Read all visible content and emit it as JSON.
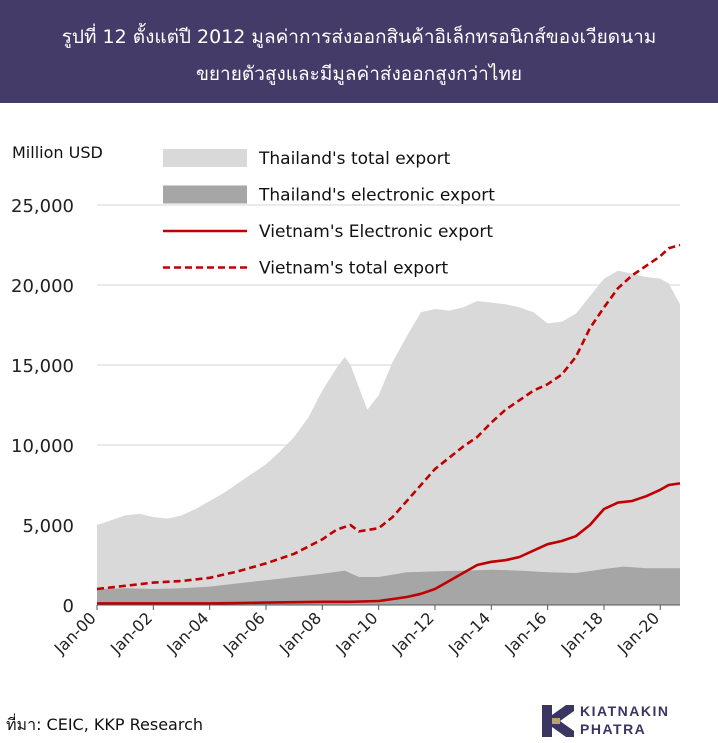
{
  "header": {
    "title_line1": "รูปที่ 12  ตั้งแต่ปี 2012 มูลค่าการส่งออกสินค้าอิเล็กทรอนิกส์ของเวียดนาม",
    "title_line2": "ขยายตัวสูงและมีมูลค่าส่งออกสูงกว่าไทย",
    "background_color": "#443b69"
  },
  "footer": {
    "source": "ที่มา: CEIC, KKP Research",
    "logo_line1": "KIATNAKIN",
    "logo_line2": "PHATRA"
  },
  "chart_data": {
    "type": "area",
    "ylabel": "Million USD",
    "ylim": [
      0,
      25000
    ],
    "yticks": [
      0,
      5000,
      10000,
      15000,
      20000,
      25000
    ],
    "ytick_labels": [
      "0",
      "5,000",
      "10,000",
      "15,000",
      "20,000",
      "25,000"
    ],
    "xlim": [
      2000,
      2020.7
    ],
    "xticks": [
      2000,
      2002,
      2004,
      2006,
      2008,
      2010,
      2012,
      2014,
      2016,
      2018,
      2020
    ],
    "xtick_labels": [
      "Jan-00",
      "Jan-02",
      "Jan-04",
      "Jan-06",
      "Jan-08",
      "Jan-10",
      "Jan-12",
      "Jan-14",
      "Jan-16",
      "Jan-18",
      "Jan-20"
    ],
    "grid": "horizontal",
    "legend_position": "top",
    "series": [
      {
        "name": "Thailand's total export",
        "style": "area",
        "color": "#d9d9d9",
        "x": [
          2000,
          2000.5,
          2001,
          2001.5,
          2002,
          2002.5,
          2003,
          2003.5,
          2004,
          2004.5,
          2005,
          2005.5,
          2006,
          2006.5,
          2007,
          2007.5,
          2008,
          2008.5,
          2008.8,
          2009,
          2009.3,
          2009.6,
          2010,
          2010.5,
          2011,
          2011.5,
          2012,
          2012.5,
          2013,
          2013.5,
          2014,
          2014.5,
          2015,
          2015.5,
          2016,
          2016.5,
          2017,
          2017.5,
          2018,
          2018.5,
          2019,
          2019.5,
          2020,
          2020.3,
          2020.7
        ],
        "values": [
          5000,
          5300,
          5600,
          5700,
          5500,
          5400,
          5600,
          6000,
          6500,
          7000,
          7600,
          8200,
          8800,
          9600,
          10500,
          11700,
          13400,
          14800,
          15500,
          15000,
          13600,
          12200,
          13100,
          15200,
          16800,
          18300,
          18500,
          18400,
          18600,
          19000,
          18900,
          18800,
          18600,
          18300,
          17600,
          17700,
          18200,
          19300,
          20400,
          20900,
          20700,
          20500,
          20400,
          20100,
          18800
        ]
      },
      {
        "name": "Thailand's electronic export",
        "style": "area",
        "color": "#a6a6a6",
        "x": [
          2000,
          2001,
          2002,
          2003,
          2004,
          2005,
          2006,
          2007,
          2008,
          2008.8,
          2009.3,
          2010,
          2011,
          2012,
          2013,
          2014,
          2015,
          2016,
          2017,
          2018,
          2018.7,
          2019.5,
          2020,
          2020.7
        ],
        "values": [
          1000,
          1050,
          1000,
          1050,
          1150,
          1350,
          1550,
          1750,
          1950,
          2150,
          1750,
          1750,
          2050,
          2100,
          2150,
          2200,
          2150,
          2050,
          2000,
          2250,
          2400,
          2300,
          2300,
          2300
        ]
      },
      {
        "name": "Vietnam's Electronic export",
        "style": "line",
        "color": "#c00000",
        "x": [
          2000,
          2002,
          2004,
          2006,
          2008,
          2009,
          2010,
          2011,
          2011.5,
          2012,
          2012.5,
          2013,
          2013.5,
          2014,
          2014.5,
          2015,
          2015.5,
          2016,
          2016.5,
          2017,
          2017.5,
          2018,
          2018.5,
          2019,
          2019.5,
          2020,
          2020.3,
          2020.7
        ],
        "values": [
          100,
          100,
          100,
          150,
          200,
          200,
          250,
          500,
          700,
          1000,
          1500,
          2000,
          2500,
          2700,
          2800,
          3000,
          3400,
          3800,
          4000,
          4300,
          5000,
          6000,
          6400,
          6500,
          6800,
          7200,
          7500,
          7600
        ]
      },
      {
        "name": "Vietnam's total export",
        "style": "dashed",
        "color": "#c00000",
        "x": [
          2000,
          2001,
          2002,
          2003,
          2004,
          2005,
          2006,
          2007,
          2008,
          2008.5,
          2009,
          2009.3,
          2010,
          2010.5,
          2011,
          2011.5,
          2012,
          2012.5,
          2013,
          2013.5,
          2014,
          2014.5,
          2015,
          2015.5,
          2016,
          2016.5,
          2017,
          2017.5,
          2018,
          2018.5,
          2019,
          2019.5,
          2020,
          2020.3,
          2020.7
        ],
        "values": [
          1000,
          1200,
          1400,
          1500,
          1700,
          2100,
          2600,
          3200,
          4100,
          4700,
          5000,
          4600,
          4800,
          5500,
          6500,
          7500,
          8500,
          9200,
          9900,
          10500,
          11400,
          12200,
          12800,
          13400,
          13800,
          14400,
          15500,
          17300,
          18600,
          19800,
          20600,
          21200,
          21800,
          22300,
          22500
        ]
      }
    ]
  }
}
